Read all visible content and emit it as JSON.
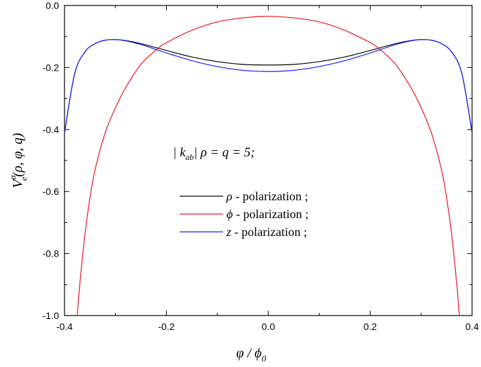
{
  "chart_data": {
    "type": "line",
    "xlim": [
      -0.4,
      0.4
    ],
    "ylim": [
      -1.0,
      0.0
    ],
    "x_ticks": [
      -0.4,
      -0.2,
      0.0,
      0.2,
      0.4
    ],
    "y_ticks": [
      0.0,
      -0.2,
      -0.4,
      -0.6,
      -0.8,
      -1.0
    ],
    "x_tick_labels": [
      "-0.4",
      "-0.2",
      "0.0",
      "0.2",
      "0.4"
    ],
    "y_tick_labels": [
      "0.0",
      "-0.2",
      "-0.4",
      "-0.6",
      "-0.8",
      "-1.0"
    ],
    "xlabel": {
      "main": "φ / ϕ",
      "sub": "0"
    },
    "ylabel": {
      "base": "V",
      "sup": "σ",
      "sub": "e",
      "args": "(ρ, φ, q)"
    },
    "annotation": {
      "left": "| k",
      "sub": "ab",
      "right": "| ρ = q  =  5;"
    },
    "grid": false,
    "legend_position": "center-left",
    "series": [
      {
        "name": "ρ - polarization ;",
        "symbol": "ρ",
        "suffix": " - polarization ;",
        "color": "#000000",
        "x": [
          -0.4,
          -0.38,
          -0.36,
          -0.34,
          -0.32,
          -0.3,
          -0.28,
          -0.25,
          -0.2,
          -0.15,
          -0.1,
          -0.05,
          0.0,
          0.05,
          0.1,
          0.15,
          0.2,
          0.25,
          0.28,
          0.3,
          0.32,
          0.34,
          0.36,
          0.38,
          0.4
        ],
        "y": [
          -0.41,
          -0.22,
          -0.15,
          -0.123,
          -0.112,
          -0.11,
          -0.113,
          -0.123,
          -0.145,
          -0.166,
          -0.181,
          -0.19,
          -0.192,
          -0.19,
          -0.181,
          -0.166,
          -0.145,
          -0.123,
          -0.113,
          -0.11,
          -0.112,
          -0.123,
          -0.15,
          -0.22,
          -0.41
        ]
      },
      {
        "name": "ϕ - polarization ;",
        "symbol": "ϕ",
        "suffix": " - polarization ;",
        "color": "#e8141e",
        "x": [
          -0.375,
          -0.37,
          -0.36,
          -0.35,
          -0.34,
          -0.32,
          -0.3,
          -0.28,
          -0.25,
          -0.22,
          -0.2,
          -0.15,
          -0.1,
          -0.05,
          0.0,
          0.05,
          0.1,
          0.15,
          0.2,
          0.22,
          0.25,
          0.28,
          0.3,
          0.32,
          0.34,
          0.35,
          0.36,
          0.37,
          0.375
        ],
        "y": [
          -1.0,
          -0.9,
          -0.74,
          -0.62,
          -0.53,
          -0.41,
          -0.33,
          -0.265,
          -0.19,
          -0.143,
          -0.12,
          -0.08,
          -0.053,
          -0.04,
          -0.035,
          -0.04,
          -0.053,
          -0.08,
          -0.12,
          -0.143,
          -0.19,
          -0.265,
          -0.33,
          -0.41,
          -0.53,
          -0.62,
          -0.74,
          -0.9,
          -1.0
        ]
      },
      {
        "name": "z - polarization ;",
        "symbol": "z",
        "suffix": " - polarization ;",
        "color": "#1a1aff",
        "x": [
          -0.4,
          -0.38,
          -0.36,
          -0.34,
          -0.32,
          -0.3,
          -0.28,
          -0.25,
          -0.2,
          -0.15,
          -0.1,
          -0.05,
          0.0,
          0.05,
          0.1,
          0.15,
          0.2,
          0.25,
          0.28,
          0.3,
          0.32,
          0.34,
          0.36,
          0.38,
          0.4
        ],
        "y": [
          -0.41,
          -0.22,
          -0.15,
          -0.123,
          -0.112,
          -0.11,
          -0.114,
          -0.126,
          -0.153,
          -0.178,
          -0.197,
          -0.209,
          -0.213,
          -0.209,
          -0.197,
          -0.178,
          -0.153,
          -0.126,
          -0.114,
          -0.11,
          -0.112,
          -0.123,
          -0.15,
          -0.22,
          -0.41
        ]
      }
    ]
  }
}
